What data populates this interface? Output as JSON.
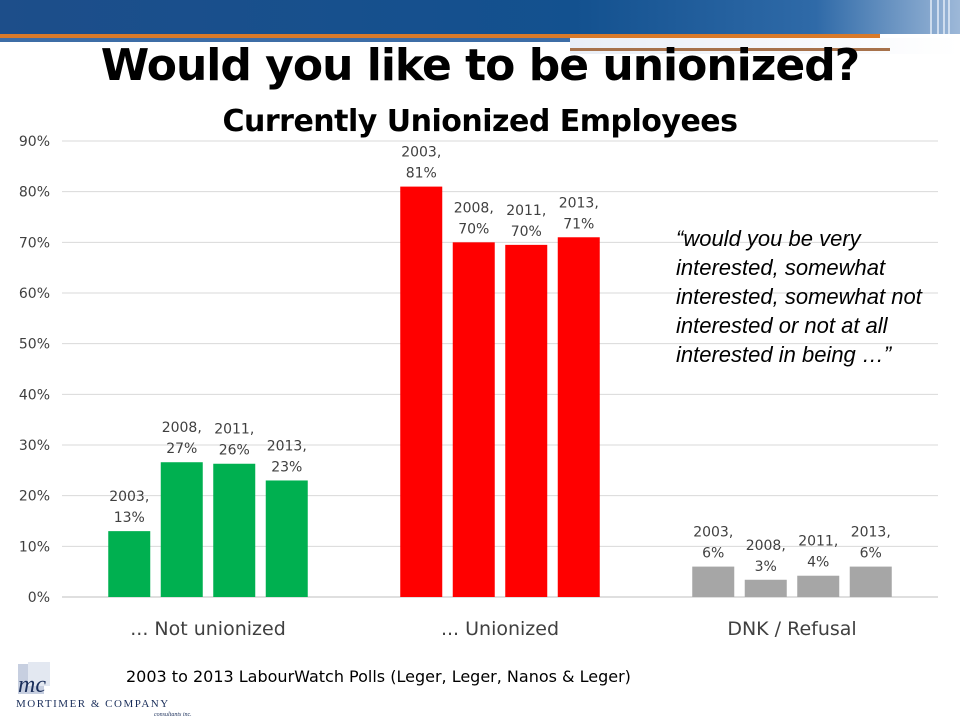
{
  "title": "Would you like to be unionized?",
  "subtitle": "Currently Unionized Employees",
  "note": "“would you be very interested, somewhat interested, somewhat not interested or not at all interested in being …”",
  "source": "2003 to 2013 LabourWatch Polls (Leger, Leger, Nanos & Leger)",
  "logo": {
    "company": "Mortimer & Company",
    "sub": "consultants inc.",
    "mark": "mc"
  },
  "chart_data": {
    "type": "bar",
    "categories": [
      "... Not unionized",
      "... Unionized",
      "DNK / Refusal"
    ],
    "series": [
      {
        "name": "2003",
        "values": [
          13,
          81,
          6
        ]
      },
      {
        "name": "2008",
        "values": [
          27,
          70,
          3
        ]
      },
      {
        "name": "2011",
        "values": [
          26,
          70,
          4
        ]
      },
      {
        "name": "2013",
        "values": [
          23,
          71,
          6
        ]
      }
    ],
    "precise_values": [
      [
        13,
        26.6,
        26.3,
        23
      ],
      [
        81,
        70,
        69.5,
        71
      ],
      [
        6,
        3.4,
        4.2,
        6
      ]
    ],
    "data_labels": [
      [
        [
          "2003,",
          "13%"
        ],
        [
          "2008,",
          "27%"
        ],
        [
          "2011,",
          "26%"
        ],
        [
          "2013,",
          "23%"
        ]
      ],
      [
        [
          "2003,",
          "81%"
        ],
        [
          "2008,",
          "70%"
        ],
        [
          "2011,",
          "70%"
        ],
        [
          "2013,",
          "71%"
        ]
      ],
      [
        [
          "2003,",
          "6%"
        ],
        [
          "2008,",
          "3%"
        ],
        [
          "2011,",
          "4%"
        ],
        [
          "2013,",
          "6%"
        ]
      ]
    ],
    "yticks": [
      "0%",
      "10%",
      "20%",
      "30%",
      "40%",
      "50%",
      "60%",
      "70%",
      "80%",
      "90%"
    ],
    "ylim": [
      0,
      90
    ],
    "colors": [
      "#00b050",
      "#ff0000",
      "#a6a6a6"
    ],
    "grid": true,
    "xlabel": "",
    "ylabel": ""
  }
}
